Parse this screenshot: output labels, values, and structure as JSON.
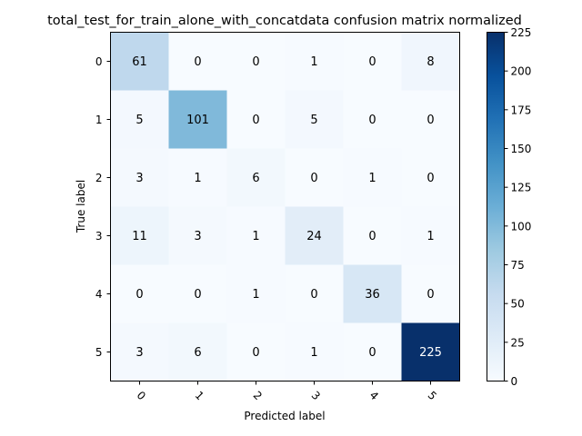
{
  "chart_data": {
    "type": "heatmap",
    "title": "total_test_for_train_alone_with_concatdata confusion matrix normalized",
    "xlabel": "Predicted label",
    "ylabel": "True label",
    "x_categories": [
      "0",
      "1",
      "2",
      "3",
      "4",
      "5"
    ],
    "y_categories": [
      "0",
      "1",
      "2",
      "3",
      "4",
      "5"
    ],
    "matrix": [
      [
        61,
        0,
        0,
        1,
        0,
        8
      ],
      [
        5,
        101,
        0,
        5,
        0,
        0
      ],
      [
        3,
        1,
        6,
        0,
        1,
        0
      ],
      [
        11,
        3,
        1,
        24,
        0,
        1
      ],
      [
        0,
        0,
        1,
        0,
        36,
        0
      ],
      [
        3,
        6,
        0,
        1,
        0,
        225
      ]
    ],
    "colormap": "Blues",
    "color_range": [
      0,
      225
    ],
    "colorbar_ticks": [
      "0",
      "25",
      "50",
      "75",
      "100",
      "125",
      "150",
      "175",
      "200",
      "225"
    ],
    "x_tick_rotation": 45
  }
}
